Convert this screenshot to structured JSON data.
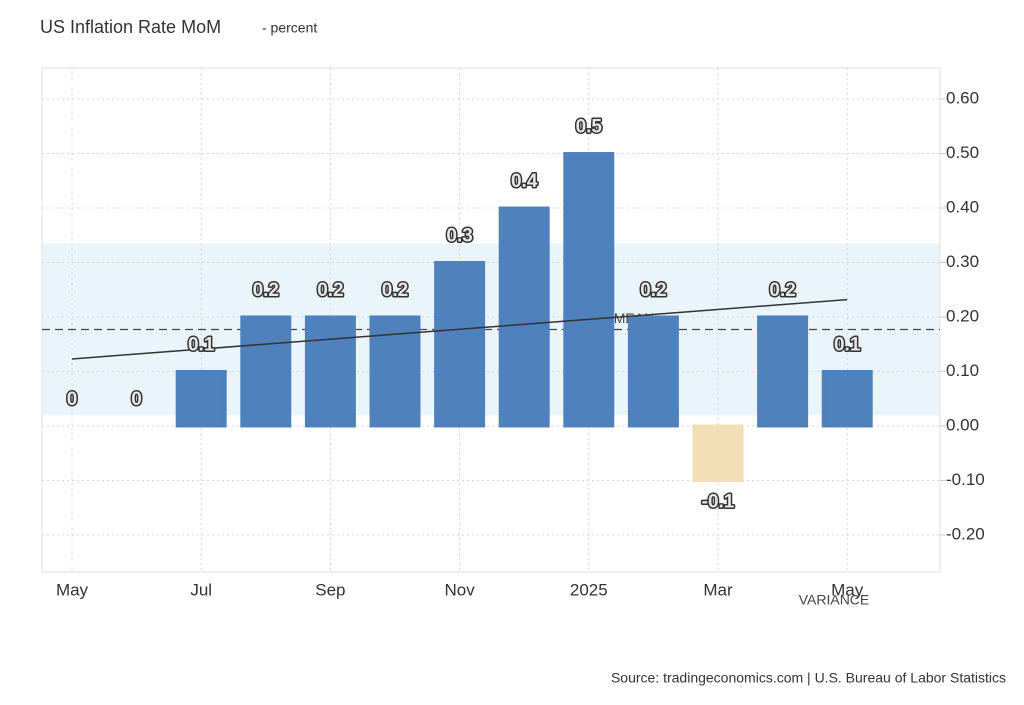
{
  "chart_data": {
    "type": "bar",
    "title": "US Inflation Rate MoM",
    "subtitle": "- percent",
    "source": "Source: tradingeconomics.com | U.S. Bureau of Labor Statistics",
    "categories": [
      "May",
      null,
      "Jul",
      null,
      "Sep",
      null,
      "Nov",
      null,
      "2025",
      null,
      "Mar",
      null,
      "May"
    ],
    "series": [
      {
        "name": "US Inflation Rate MoM",
        "color": "#4f81bd",
        "negative_color": "#f3deb5",
        "values": [
          0,
          0,
          0.1,
          0.2,
          0.2,
          0.2,
          0.3,
          0.4,
          0.5,
          0.2,
          -0.1,
          0.2,
          0.1
        ]
      }
    ],
    "ylim": [
      -0.268,
      0.657
    ],
    "yticks": [
      {
        "value": -0.2,
        "label": "-0.20"
      },
      {
        "value": -0.1,
        "label": "-0.10"
      },
      {
        "value": 0,
        "label": "0.00"
      },
      {
        "value": 0.1,
        "label": "0.10"
      },
      {
        "value": 0.2,
        "label": "0.20"
      },
      {
        "value": 0.3,
        "label": "0.30"
      },
      {
        "value": 0.4,
        "label": "0.40"
      },
      {
        "value": 0.5,
        "label": "0.50"
      },
      {
        "value": 0.6,
        "label": "0.60"
      }
    ],
    "grid": true,
    "mean": {
      "label": "MEAN",
      "value": 0.177
    },
    "variance": {
      "label": "VARIANCE",
      "range": [
        0.02,
        0.335
      ]
    },
    "trend": [
      0.123,
      0.232
    ]
  }
}
